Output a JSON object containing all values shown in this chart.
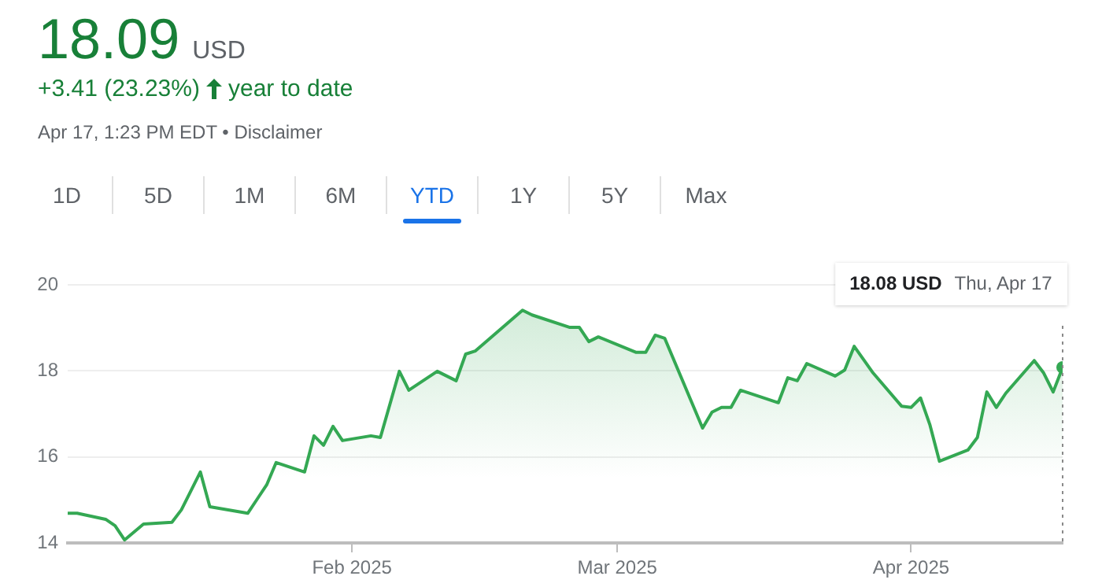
{
  "chart_data": {
    "type": "area",
    "title": "18.09",
    "annotations": [
      "USD",
      "+3.41 (23.23%)",
      "year to date",
      "Apr 17, 1:23 PM EDT • Disclaimer",
      "1D",
      "5D",
      "1M",
      "6M",
      "YTD",
      "1Y",
      "5Y",
      "Max",
      "18.08 USD",
      "Thu, Apr 17"
    ],
    "series": [
      {
        "color": "#34a853",
        "x": [
          "2025-01-02",
          "2025-01-03",
          "2025-01-06",
          "2025-01-07",
          "2025-01-08",
          "2025-01-10",
          "2025-01-13",
          "2025-01-14",
          "2025-01-15",
          "2025-01-16",
          "2025-01-17",
          "2025-01-21",
          "2025-01-22",
          "2025-01-23",
          "2025-01-24",
          "2025-01-27",
          "2025-01-28",
          "2025-01-29",
          "2025-01-30",
          "2025-01-31",
          "2025-02-03",
          "2025-02-04",
          "2025-02-06",
          "2025-02-07",
          "2025-02-10",
          "2025-02-12",
          "2025-02-13",
          "2025-02-14",
          "2025-02-19",
          "2025-02-20",
          "2025-02-24",
          "2025-02-25",
          "2025-02-26",
          "2025-02-27",
          "2025-03-03",
          "2025-03-04",
          "2025-03-05",
          "2025-03-06",
          "2025-03-10",
          "2025-03-11",
          "2025-03-12",
          "2025-03-13",
          "2025-03-14",
          "2025-03-18",
          "2025-03-19",
          "2025-03-20",
          "2025-03-21",
          "2025-03-24",
          "2025-03-25",
          "2025-03-26",
          "2025-03-28",
          "2025-03-31",
          "2025-04-01",
          "2025-04-02",
          "2025-04-03",
          "2025-04-04",
          "2025-04-07",
          "2025-04-08",
          "2025-04-09",
          "2025-04-10",
          "2025-04-11",
          "2025-04-14",
          "2025-04-15",
          "2025-04-16",
          "2025-04-17"
        ],
        "values": [
          14.69,
          14.69,
          14.55,
          14.4,
          14.07,
          14.44,
          14.48,
          14.77,
          15.21,
          15.65,
          14.84,
          14.69,
          15.02,
          15.35,
          15.87,
          15.65,
          16.49,
          16.27,
          16.71,
          16.38,
          16.49,
          16.45,
          17.99,
          17.55,
          17.99,
          17.77,
          18.39,
          18.46,
          19.41,
          19.3,
          19.01,
          19.01,
          18.68,
          18.79,
          18.43,
          18.43,
          18.83,
          18.76,
          16.67,
          17.04,
          17.15,
          17.15,
          17.55,
          17.26,
          17.84,
          17.77,
          18.17,
          17.88,
          18.02,
          18.57,
          17.95,
          17.18,
          17.15,
          17.37,
          16.74,
          15.9,
          16.16,
          16.45,
          17.51,
          17.15,
          17.48,
          18.24,
          17.95,
          17.51,
          18.08
        ]
      }
    ],
    "xlim": [
      "2025-01-02",
      "2025-04-17"
    ],
    "xticks": [
      {
        "value": "2025-02-01",
        "label": "Feb 2025"
      },
      {
        "value": "2025-03-01",
        "label": "Mar 2025"
      },
      {
        "value": "2025-04-01",
        "label": "Apr 2025"
      }
    ],
    "ylim": [
      14,
      20
    ],
    "yticks": [
      14,
      16,
      18,
      20
    ],
    "grid": "y",
    "ref_lines": [
      {
        "axis": "x",
        "value": "2025-04-17",
        "color": "#8a8a8a",
        "line_style": "dotted"
      }
    ]
  }
}
